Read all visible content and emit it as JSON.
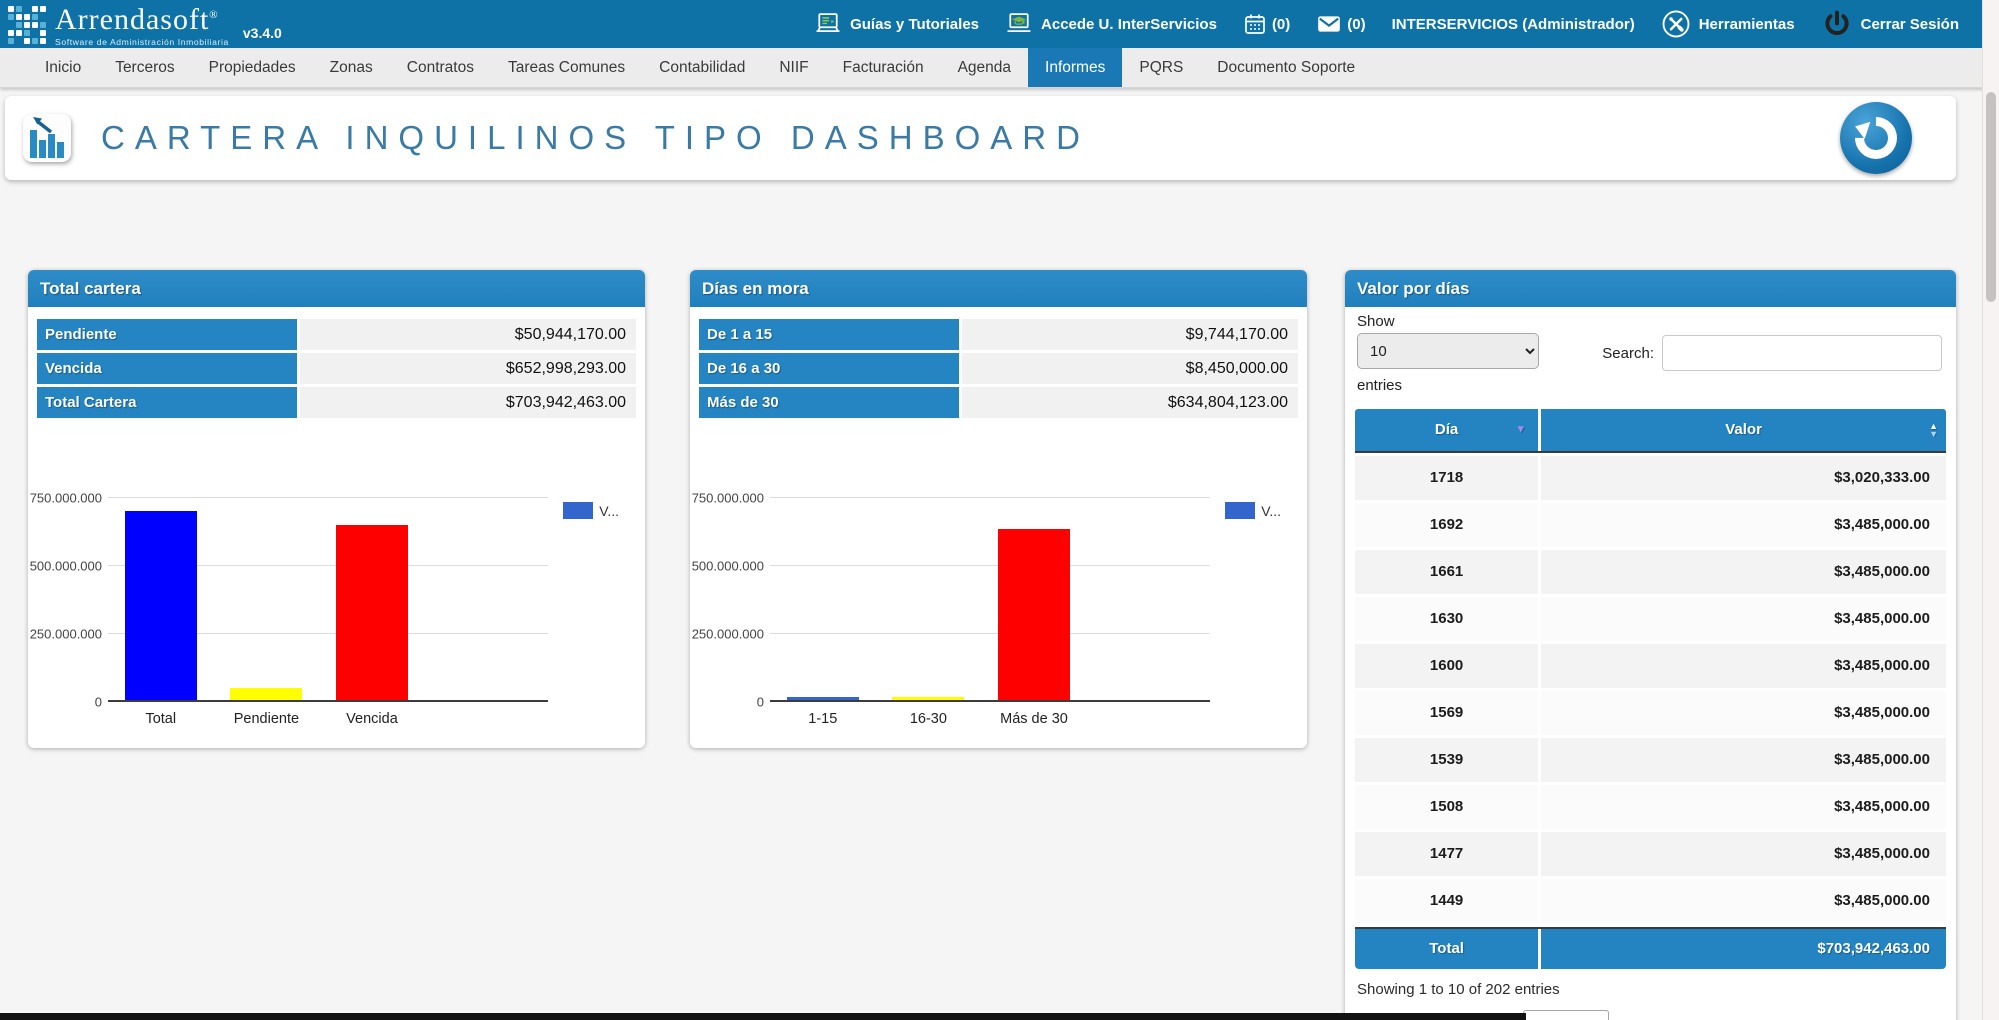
{
  "colors": {
    "header_bar": "#0f72a6",
    "active_tab": "#1a79b4",
    "panel_header": "#2484c2",
    "title_text": "#3a7aa5",
    "legend_blue": "#3366cc"
  },
  "header": {
    "brand": {
      "name": "Arrendasoft",
      "reg": "®",
      "tagline": "Software de Administración Inmobiliaria",
      "version": "v3.4.0"
    },
    "guides_label": "Guías y Tutoriales",
    "interservices_label": "Accede U. InterServicios",
    "calendar_count": "(0)",
    "mail_count": "(0)",
    "user": "INTERSERVICIOS (Administrador)",
    "tools_label": "Herramientas",
    "logout_label": "Cerrar Sesión"
  },
  "nav": {
    "items": [
      "Inicio",
      "Terceros",
      "Propiedades",
      "Zonas",
      "Contratos",
      "Tareas Comunes",
      "Contabilidad",
      "NIIF",
      "Facturación",
      "Agenda",
      "Informes",
      "PQRS",
      "Documento Soporte"
    ],
    "active_index": 10
  },
  "page": {
    "title": "CARTERA INQUILINOS TIPO DASHBOARD"
  },
  "panels": {
    "total_cartera": {
      "title": "Total cartera",
      "rows": [
        {
          "label": "Pendiente",
          "value": "$50,944,170.00"
        },
        {
          "label": "Vencida",
          "value": "$652,998,293.00"
        },
        {
          "label": "Total Cartera",
          "value": "$703,942,463.00"
        }
      ]
    },
    "dias_en_mora": {
      "title": "Días en mora",
      "rows": [
        {
          "label": "De 1 a 15",
          "value": "$9,744,170.00"
        },
        {
          "label": "De 16 a 30",
          "value": "$8,450,000.00"
        },
        {
          "label": "Más de 30",
          "value": "$634,804,123.00"
        }
      ]
    },
    "valor_por_dias": {
      "title": "Valor por días",
      "show_label": "Show",
      "show_value": "10",
      "entries_label": "entries",
      "search_label": "Search:",
      "columns": [
        "Día",
        "Valor"
      ],
      "rows": [
        {
          "dia": "1718",
          "valor": "$3,020,333.00"
        },
        {
          "dia": "1692",
          "valor": "$3,485,000.00"
        },
        {
          "dia": "1661",
          "valor": "$3,485,000.00"
        },
        {
          "dia": "1630",
          "valor": "$3,485,000.00"
        },
        {
          "dia": "1600",
          "valor": "$3,485,000.00"
        },
        {
          "dia": "1569",
          "valor": "$3,485,000.00"
        },
        {
          "dia": "1539",
          "valor": "$3,485,000.00"
        },
        {
          "dia": "1508",
          "valor": "$3,485,000.00"
        },
        {
          "dia": "1477",
          "valor": "$3,485,000.00"
        },
        {
          "dia": "1449",
          "valor": "$3,485,000.00"
        }
      ],
      "total_label": "Total",
      "total_value": "$703,942,463.00",
      "footer": "Showing 1 to 10 of 202 entries"
    }
  },
  "chart_data": [
    {
      "type": "bar",
      "title": "Total cartera",
      "categories": [
        "Total",
        "Pendiente",
        "Vencida"
      ],
      "values": [
        703942463,
        50944170,
        652998293
      ],
      "bar_colors": [
        "#0000ff",
        "#ffff00",
        "#ff0000"
      ],
      "ytick_labels": [
        "0",
        "250.000.000",
        "500.000.000",
        "750.000.000"
      ],
      "ytick_values": [
        0,
        250000000,
        500000000,
        750000000
      ],
      "ylim": [
        0,
        780000000
      ],
      "grid": true,
      "legend": {
        "label": "V...",
        "color": "#3366cc",
        "position": "right"
      }
    },
    {
      "type": "bar",
      "title": "Días en mora",
      "categories": [
        "1-15",
        "16-30",
        "Más de 30"
      ],
      "values": [
        9744170,
        8450000,
        634804123
      ],
      "bar_colors": [
        "#3366cc",
        "#ffff00",
        "#ff0000"
      ],
      "ytick_labels": [
        "0",
        "250.000.000",
        "500.000.000",
        "750.000.000"
      ],
      "ytick_values": [
        0,
        250000000,
        500000000,
        750000000
      ],
      "ylim": [
        0,
        780000000
      ],
      "grid": true,
      "legend": {
        "label": "V...",
        "color": "#3366cc",
        "position": "right"
      }
    }
  ]
}
